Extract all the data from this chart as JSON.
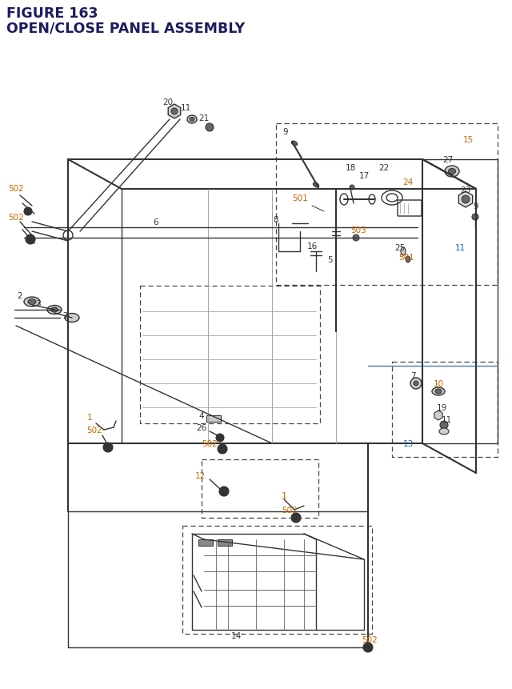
{
  "title_line1": "FIGURE 163",
  "title_line2": "OPEN/CLOSE PANEL ASSEMBLY",
  "title_color": "#1c1c5e",
  "title_fontsize": 12.5,
  "background_color": "#ffffff",
  "orange": "#cc6600",
  "blue": "#1a5eb8",
  "dark": "#333333",
  "gray": "#666666",
  "lgray": "#999999"
}
